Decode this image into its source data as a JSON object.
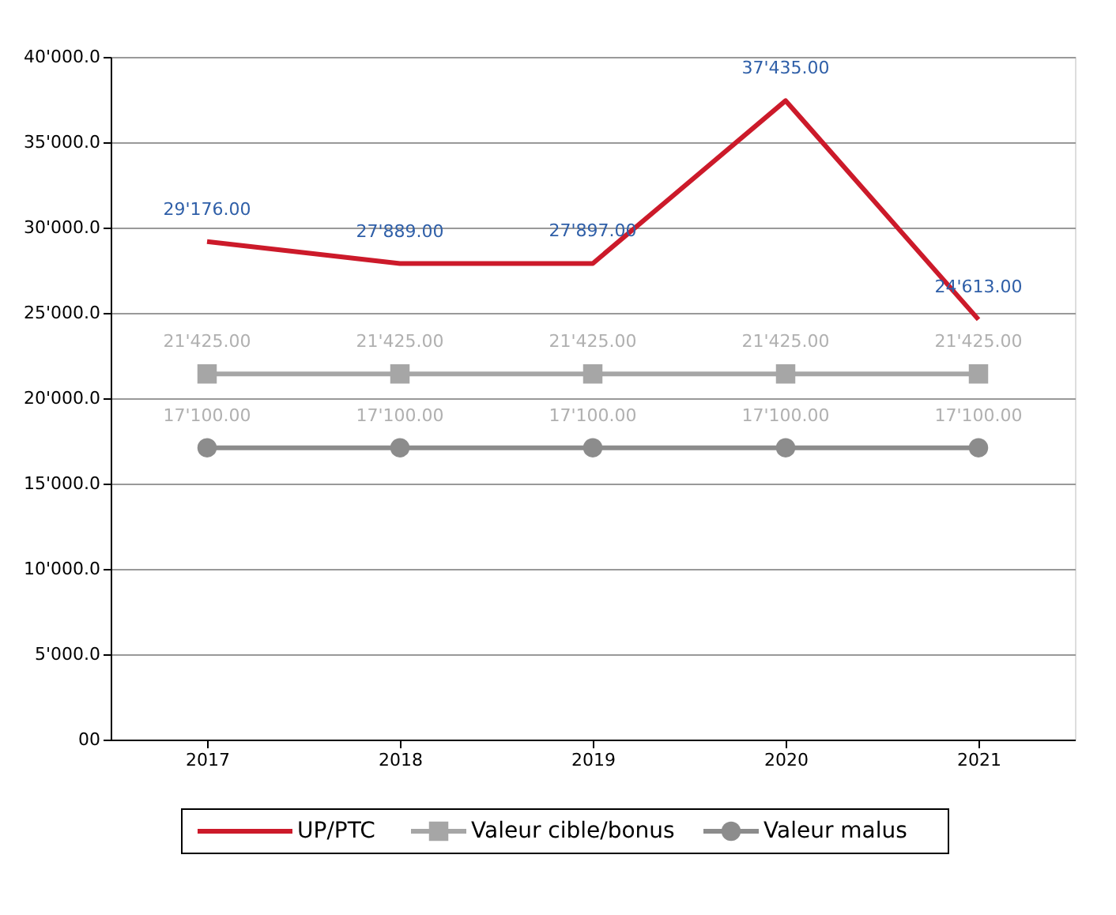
{
  "chart_data": {
    "type": "line",
    "categories": [
      "2017",
      "2018",
      "2019",
      "2020",
      "2021"
    ],
    "series": [
      {
        "name": "UP/PTC",
        "color": "#cc1a2a",
        "marker": "none",
        "values": [
          29176,
          27889,
          27897,
          37435,
          24613
        ],
        "value_labels": [
          "29'176.00",
          "27'889.00",
          "27'897.00",
          "37'435.00",
          "24'613.00"
        ]
      },
      {
        "name": "Valeur cible/bonus",
        "color": "#a6a6a6",
        "marker": "square",
        "values": [
          21425,
          21425,
          21425,
          21425,
          21425
        ],
        "value_labels": [
          "21'425.00",
          "21'425.00",
          "21'425.00",
          "21'425.00",
          "21'425.00"
        ]
      },
      {
        "name": "Valeur malus",
        "color": "#8c8c8c",
        "marker": "circle",
        "values": [
          17100,
          17100,
          17100,
          17100,
          17100
        ],
        "value_labels": [
          "17'100.00",
          "17'100.00",
          "17'100.00",
          "17'100.00",
          "17'100.00"
        ]
      }
    ],
    "ylim": [
      0,
      40000
    ],
    "yticks": [
      {
        "value": 0,
        "label": "00"
      },
      {
        "value": 5000,
        "label": "5'000.0"
      },
      {
        "value": 10000,
        "label": "10'000.0"
      },
      {
        "value": 15000,
        "label": "15'000.0"
      },
      {
        "value": 20000,
        "label": "20'000.0"
      },
      {
        "value": 25000,
        "label": "25'000.0"
      },
      {
        "value": 30000,
        "label": "30'000.0"
      },
      {
        "value": 35000,
        "label": "35'000.0"
      },
      {
        "value": 40000,
        "label": "40'000.0"
      }
    ],
    "grid": "y",
    "legend": "bottom"
  }
}
